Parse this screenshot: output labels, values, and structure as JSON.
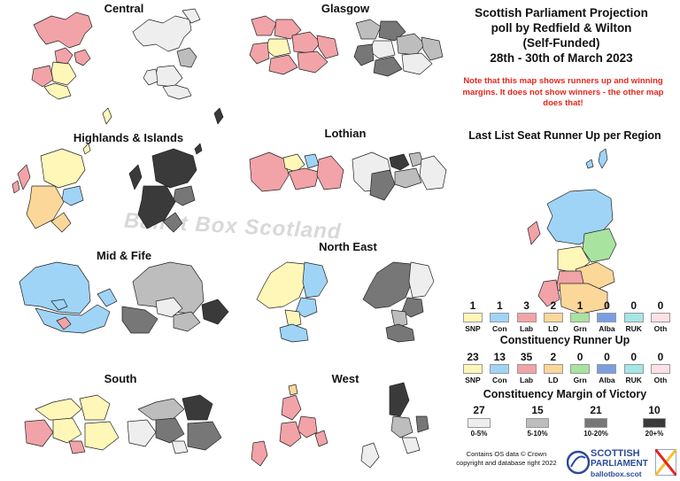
{
  "title": {
    "line1": "Scottish Parliament Projection",
    "line2": "poll by Redfield & Wilton",
    "line3": "(Self-Funded)",
    "line4": "28th - 30th of March 2023"
  },
  "note": "Note that this map shows runners up and winning margins. It does not show winners - the other map does that!",
  "regions": [
    {
      "name": "Central"
    },
    {
      "name": "Glasgow"
    },
    {
      "name": "Highlands & Islands"
    },
    {
      "name": "Lothian"
    },
    {
      "name": "Mid & Fife"
    },
    {
      "name": "North East"
    },
    {
      "name": "South"
    },
    {
      "name": "West"
    }
  ],
  "list_runner_up": {
    "heading": "Last List Seat Runner Up per Region",
    "items": [
      {
        "count": "1",
        "label": "SNP",
        "color": "#fff7b8"
      },
      {
        "count": "1",
        "label": "Con",
        "color": "#9fd4f7"
      },
      {
        "count": "3",
        "label": "Lab",
        "color": "#f2a3a8"
      },
      {
        "count": "2",
        "label": "LD",
        "color": "#fcd79a"
      },
      {
        "count": "1",
        "label": "Grn",
        "color": "#a8e3a0"
      },
      {
        "count": "0",
        "label": "Alba",
        "color": "#7a9fe0"
      },
      {
        "count": "0",
        "label": "RUK",
        "color": "#a5e6e6"
      },
      {
        "count": "0",
        "label": "Oth",
        "color": "#fde1e6"
      }
    ]
  },
  "constituency_runner_up": {
    "heading": "Constituency Runner Up",
    "items": [
      {
        "count": "23",
        "label": "SNP",
        "color": "#fff7b8"
      },
      {
        "count": "13",
        "label": "Con",
        "color": "#9fd4f7"
      },
      {
        "count": "35",
        "label": "Lab",
        "color": "#f2a3a8"
      },
      {
        "count": "2",
        "label": "LD",
        "color": "#fcd79a"
      },
      {
        "count": "0",
        "label": "Grn",
        "color": "#a8e3a0"
      },
      {
        "count": "0",
        "label": "Alba",
        "color": "#7a9fe0"
      },
      {
        "count": "0",
        "label": "RUK",
        "color": "#a5e6e6"
      },
      {
        "count": "0",
        "label": "Oth",
        "color": "#fde1e6"
      }
    ]
  },
  "margin_of_victory": {
    "heading": "Constituency Margin of Victory",
    "items": [
      {
        "count": "27",
        "label": "0-5%",
        "color": "#eeeeee"
      },
      {
        "count": "15",
        "label": "5-10%",
        "color": "#bdbdbd"
      },
      {
        "count": "21",
        "label": "10-20%",
        "color": "#777777"
      },
      {
        "count": "10",
        "label": "20+%",
        "color": "#3a3a3a"
      }
    ]
  },
  "credit": {
    "line1": "Contains OS data © Crown",
    "line2": "copyright and database right 2022"
  },
  "watermark": "Ballot Box Scotland",
  "logo": {
    "line1": "SCOTTISH",
    "line2": "PARLIAMENT",
    "line3": "ballotbox.scot",
    "side": "BALLOT BOX SCOTLAND"
  }
}
